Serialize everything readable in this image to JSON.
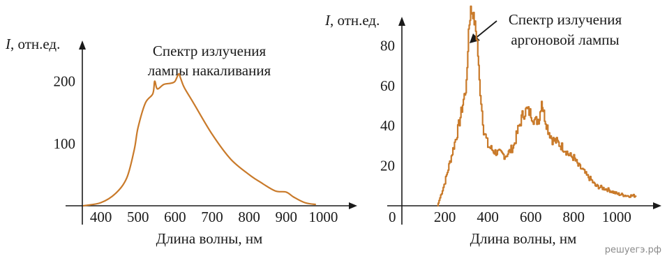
{
  "watermark": "решуегэ.рф",
  "chart_data": [
    {
      "type": "line",
      "title": "Спектр излучения лампы накаливания",
      "title_lines": [
        "Спектр излучения",
        "лампы накаливания"
      ],
      "ylabel_symbol": "I",
      "ylabel_unit": ", отн.ед.",
      "xlabel": "Длина волны, нм",
      "xticks": [
        400,
        500,
        600,
        700,
        800,
        900,
        1000
      ],
      "yticks": [
        100,
        200
      ],
      "xlim": [
        350,
        1050
      ],
      "ylim": [
        0,
        260
      ],
      "color": "#c97a2a",
      "series": [
        {
          "x": [
            352,
            400,
            440,
            470,
            490,
            500,
            520,
            540,
            545,
            550,
            555,
            570,
            590,
            600,
            610,
            615,
            625,
            650,
            700,
            750,
            800,
            830,
            870,
            900,
            920,
            950,
            980
          ],
          "y": [
            0,
            5,
            20,
            45,
            90,
            125,
            165,
            180,
            200,
            190,
            188,
            195,
            197,
            200,
            212,
            205,
            190,
            165,
            115,
            75,
            50,
            38,
            24,
            22,
            14,
            5,
            2
          ]
        }
      ]
    },
    {
      "type": "line",
      "title": "Спектр излучения аргоновой лампы",
      "title_lines": [
        "Спектр излучения",
        "аргоновой лампы"
      ],
      "ylabel_symbol": "I",
      "ylabel_unit": ", отн.ед.",
      "xlabel": "Длина волны, нм",
      "origin_label": "0",
      "xticks": [
        200,
        400,
        600,
        800,
        1000
      ],
      "yticks": [
        20,
        40,
        60,
        80
      ],
      "xlim": [
        0,
        1150
      ],
      "ylim": [
        0,
        100
      ],
      "color": "#c97a2a",
      "series": [
        {
          "x": [
            165,
            200,
            230,
            260,
            290,
            300,
            310,
            320,
            330,
            340,
            350,
            360,
            380,
            400,
            430,
            460,
            480,
            500,
            520,
            540,
            560,
            580,
            600,
            620,
            640,
            650,
            660,
            680,
            700,
            720,
            740,
            760,
            780,
            800,
            820,
            840,
            860,
            880,
            900,
            930,
            960,
            1000,
            1050,
            1090
          ],
          "y": [
            0,
            12,
            25,
            38,
            55,
            60,
            88,
            98,
            96,
            90,
            82,
            62,
            38,
            30,
            27,
            26,
            25,
            27,
            30,
            38,
            45,
            48,
            46,
            42,
            44,
            53,
            46,
            38,
            33,
            32,
            30,
            28,
            25,
            24,
            20,
            18,
            15,
            13,
            10,
            9,
            8,
            6,
            5,
            5
          ]
        }
      ]
    }
  ]
}
